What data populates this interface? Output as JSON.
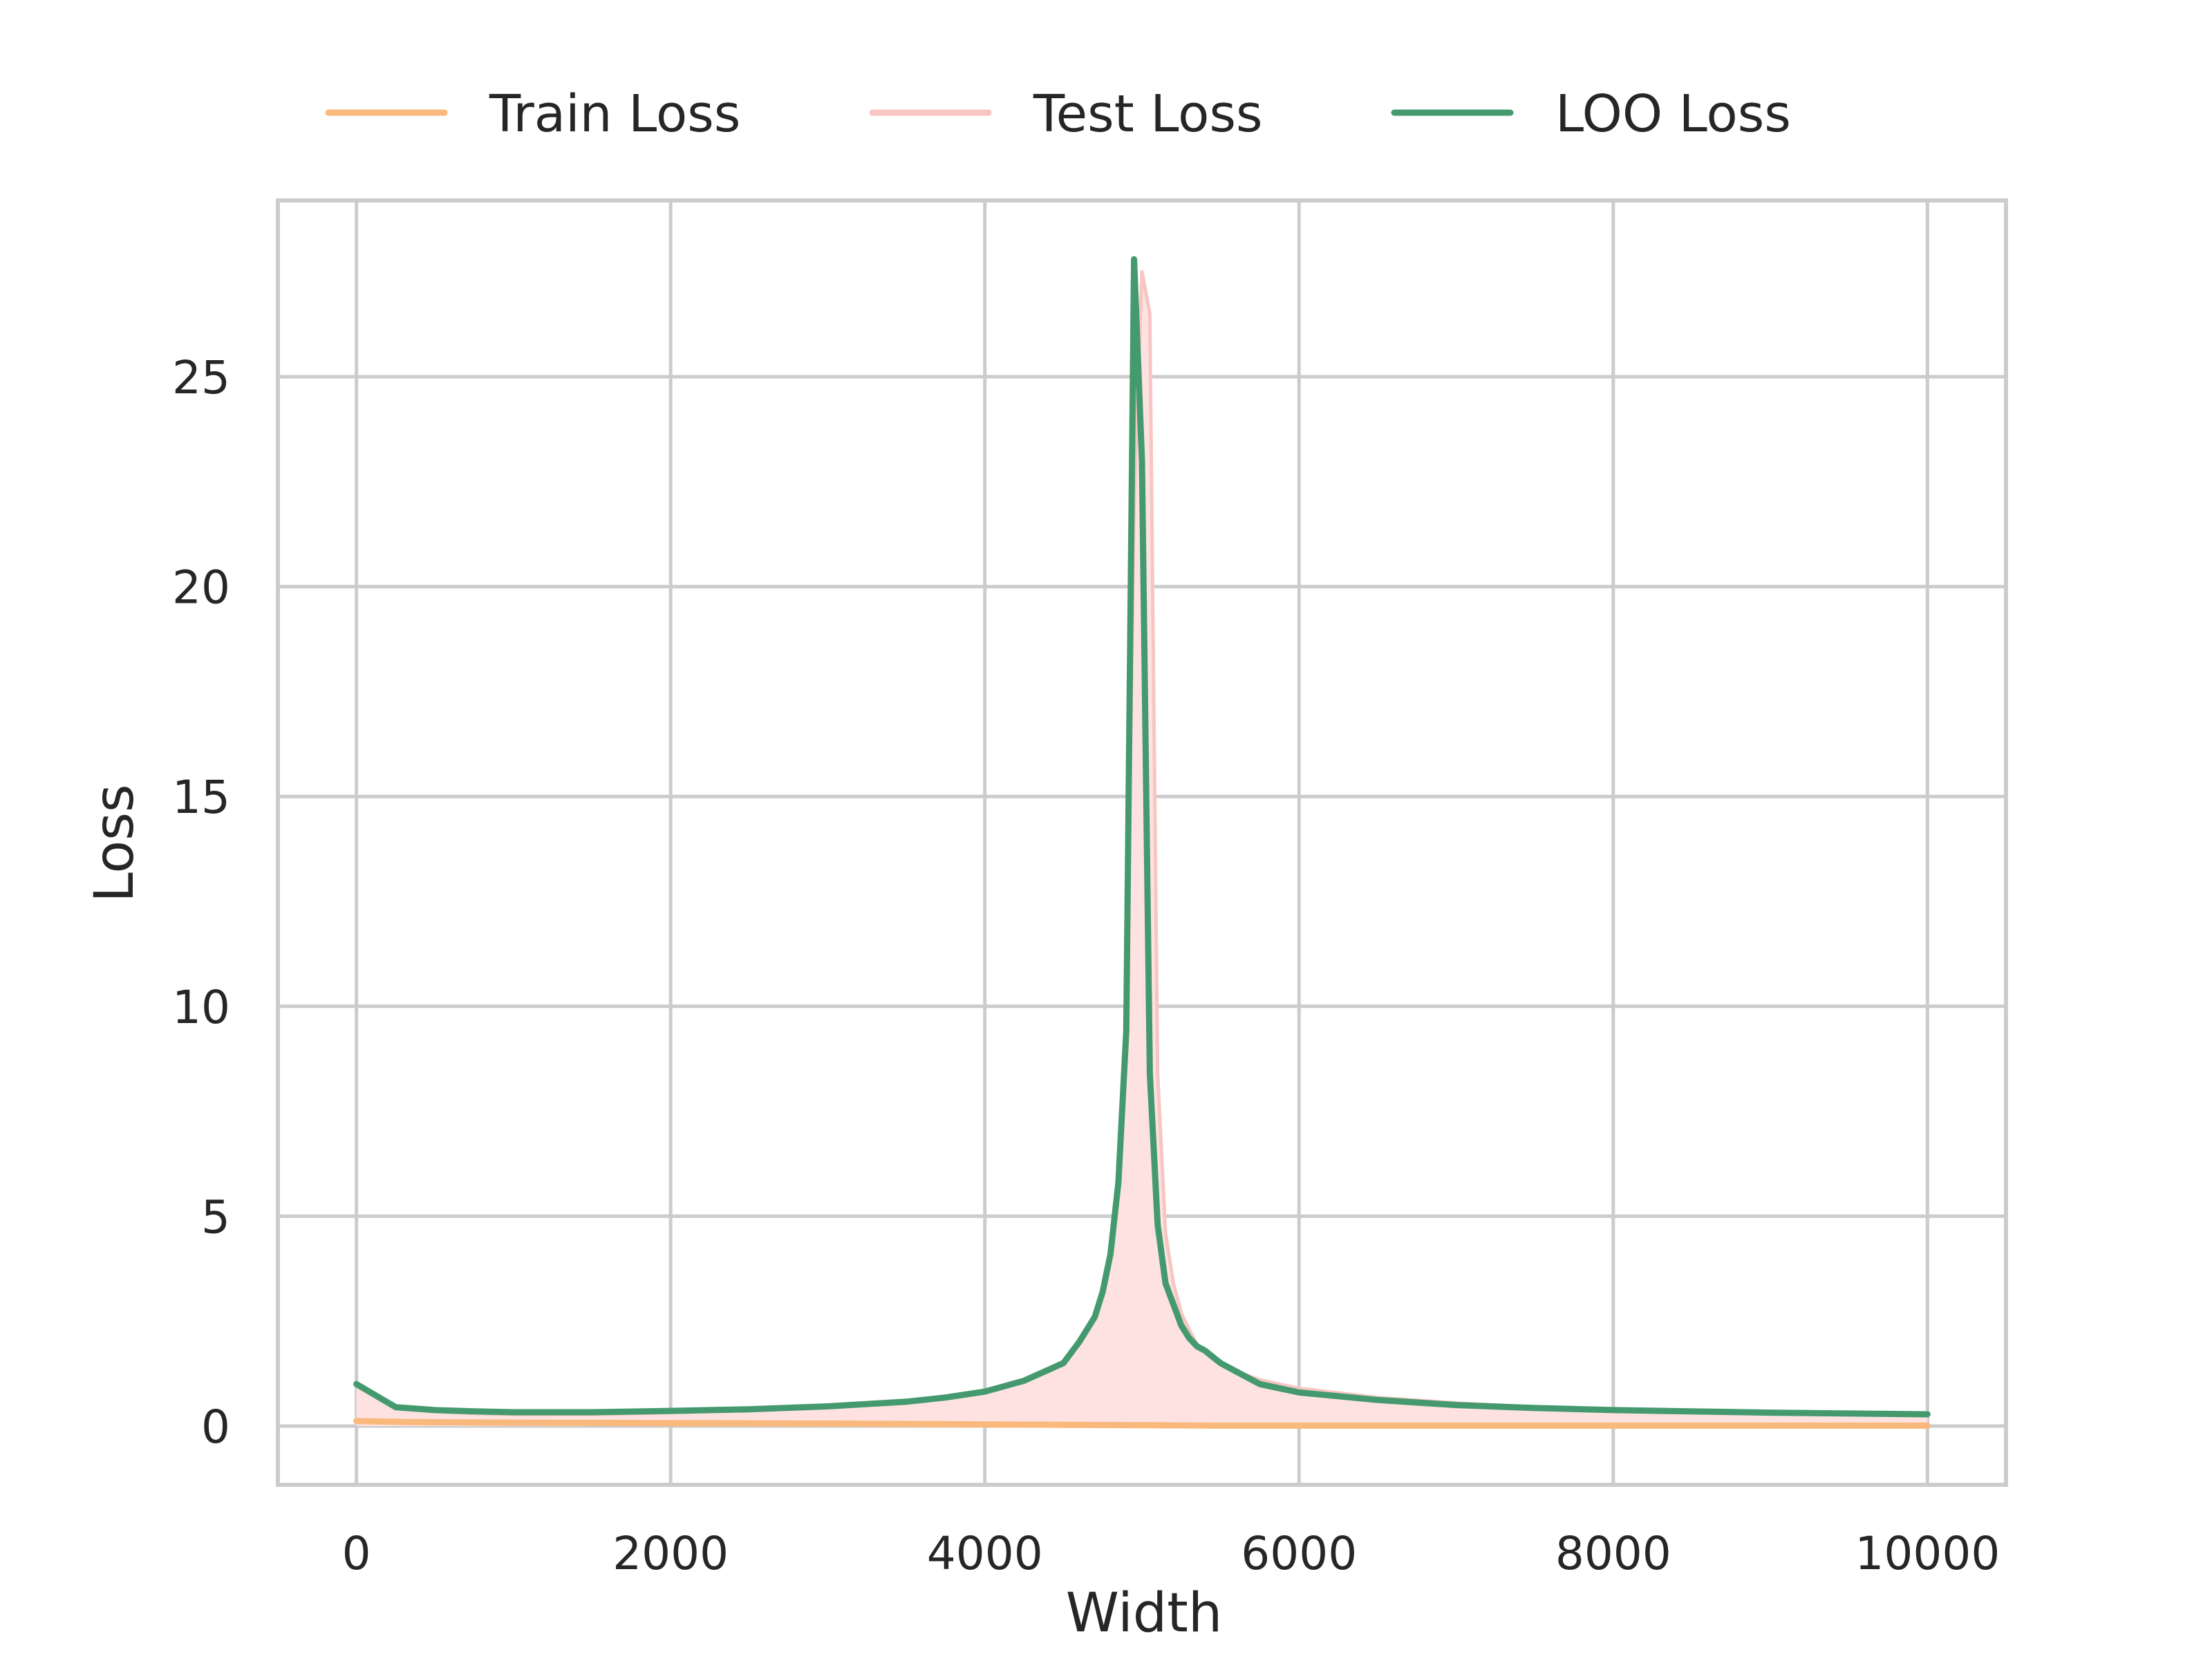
{
  "chart_data": {
    "type": "line",
    "xlabel": "Width",
    "ylabel": "Loss",
    "xlim": [
      -500,
      10500
    ],
    "ylim": [
      -1.4,
      29.2
    ],
    "xticks": [
      0,
      2000,
      4000,
      6000,
      8000,
      10000
    ],
    "yticks": [
      0,
      5,
      10,
      15,
      20,
      25
    ],
    "grid": true,
    "legend_position": "top-center",
    "series": [
      {
        "name": "Train Loss",
        "color": "#f9b97c",
        "style": "line",
        "x": [
          0,
          250,
          500,
          1000,
          2000,
          3000,
          4000,
          4500,
          5000,
          5500,
          6000,
          7000,
          8000,
          9000,
          10000
        ],
        "y": [
          0.12,
          0.1,
          0.09,
          0.08,
          0.07,
          0.06,
          0.04,
          0.03,
          0.02,
          0.01,
          0.01,
          0.01,
          0.01,
          0.01,
          0.01
        ]
      },
      {
        "name": "Test Loss",
        "color": "#f7c6c2",
        "fill_color": "#fde2e1",
        "style": "filled",
        "x": [
          0,
          250,
          500,
          750,
          1000,
          1500,
          2000,
          2500,
          3000,
          3500,
          3750,
          4000,
          4250,
          4500,
          4600,
          4700,
          4750,
          4800,
          4850,
          4900,
          4950,
          5000,
          5050,
          5100,
          5150,
          5200,
          5250,
          5300,
          5350,
          5400,
          5450,
          5500,
          5600,
          5750,
          6000,
          6500,
          7000,
          7500,
          8000,
          9000,
          10000
        ],
        "y": [
          1.0,
          0.45,
          0.35,
          0.3,
          0.28,
          0.28,
          0.32,
          0.37,
          0.45,
          0.57,
          0.68,
          0.85,
          1.1,
          1.5,
          2.0,
          2.6,
          3.2,
          4.2,
          5.8,
          9.4,
          22.0,
          27.5,
          26.5,
          8.4,
          4.6,
          3.4,
          2.7,
          2.3,
          1.95,
          1.8,
          1.65,
          1.5,
          1.3,
          1.1,
          0.9,
          0.68,
          0.55,
          0.45,
          0.4,
          0.33,
          0.28
        ]
      },
      {
        "name": "LOO Loss",
        "color": "#449a6e",
        "style": "line",
        "x": [
          0,
          250,
          500,
          750,
          1000,
          1500,
          2000,
          2500,
          3000,
          3500,
          3750,
          4000,
          4250,
          4500,
          4600,
          4700,
          4750,
          4800,
          4850,
          4900,
          4950,
          5000,
          5050,
          5100,
          5150,
          5200,
          5250,
          5300,
          5350,
          5400,
          5450,
          5500,
          5600,
          5750,
          6000,
          6500,
          7000,
          7500,
          8000,
          9000,
          10000
        ],
        "y": [
          1.0,
          0.45,
          0.38,
          0.35,
          0.33,
          0.33,
          0.36,
          0.4,
          0.47,
          0.58,
          0.68,
          0.82,
          1.08,
          1.5,
          2.0,
          2.6,
          3.2,
          4.1,
          5.8,
          9.4,
          27.8,
          23.0,
          8.4,
          4.8,
          3.4,
          2.9,
          2.4,
          2.1,
          1.9,
          1.8,
          1.65,
          1.5,
          1.3,
          1.0,
          0.8,
          0.62,
          0.5,
          0.43,
          0.38,
          0.32,
          0.28
        ]
      }
    ]
  }
}
